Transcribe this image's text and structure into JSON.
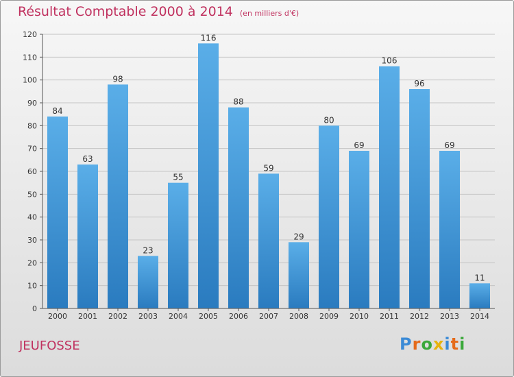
{
  "title": "Résultat Comptable 2000 à 2014",
  "subtitle": "(en milliers d'€)",
  "commune": "JEUFOSSE",
  "logo": {
    "letters": [
      "P",
      "r",
      "o",
      "x",
      "i",
      "t",
      "i"
    ],
    "colors": [
      "#3a8ad6",
      "#e56a1a",
      "#3aa83a",
      "#e7b20e",
      "#3a8ad6",
      "#e56a1a",
      "#3aa83a"
    ]
  },
  "colors": {
    "bar_top": "#5aaee8",
    "bar_bottom": "#2a7bbf",
    "title": "#c0315f"
  },
  "chart_data": {
    "type": "bar",
    "categories": [
      "2000",
      "2001",
      "2002",
      "2003",
      "2004",
      "2005",
      "2006",
      "2007",
      "2008",
      "2009",
      "2010",
      "2011",
      "2012",
      "2013",
      "2014"
    ],
    "values": [
      84,
      63,
      98,
      23,
      55,
      116,
      88,
      59,
      29,
      80,
      69,
      106,
      96,
      69,
      11
    ],
    "ylim": [
      0,
      120
    ],
    "yticks": [
      0,
      10,
      20,
      30,
      40,
      50,
      60,
      70,
      80,
      90,
      100,
      110,
      120
    ],
    "grid": true,
    "title": "Résultat Comptable 2000 à 2014",
    "xlabel": "",
    "ylabel": ""
  }
}
